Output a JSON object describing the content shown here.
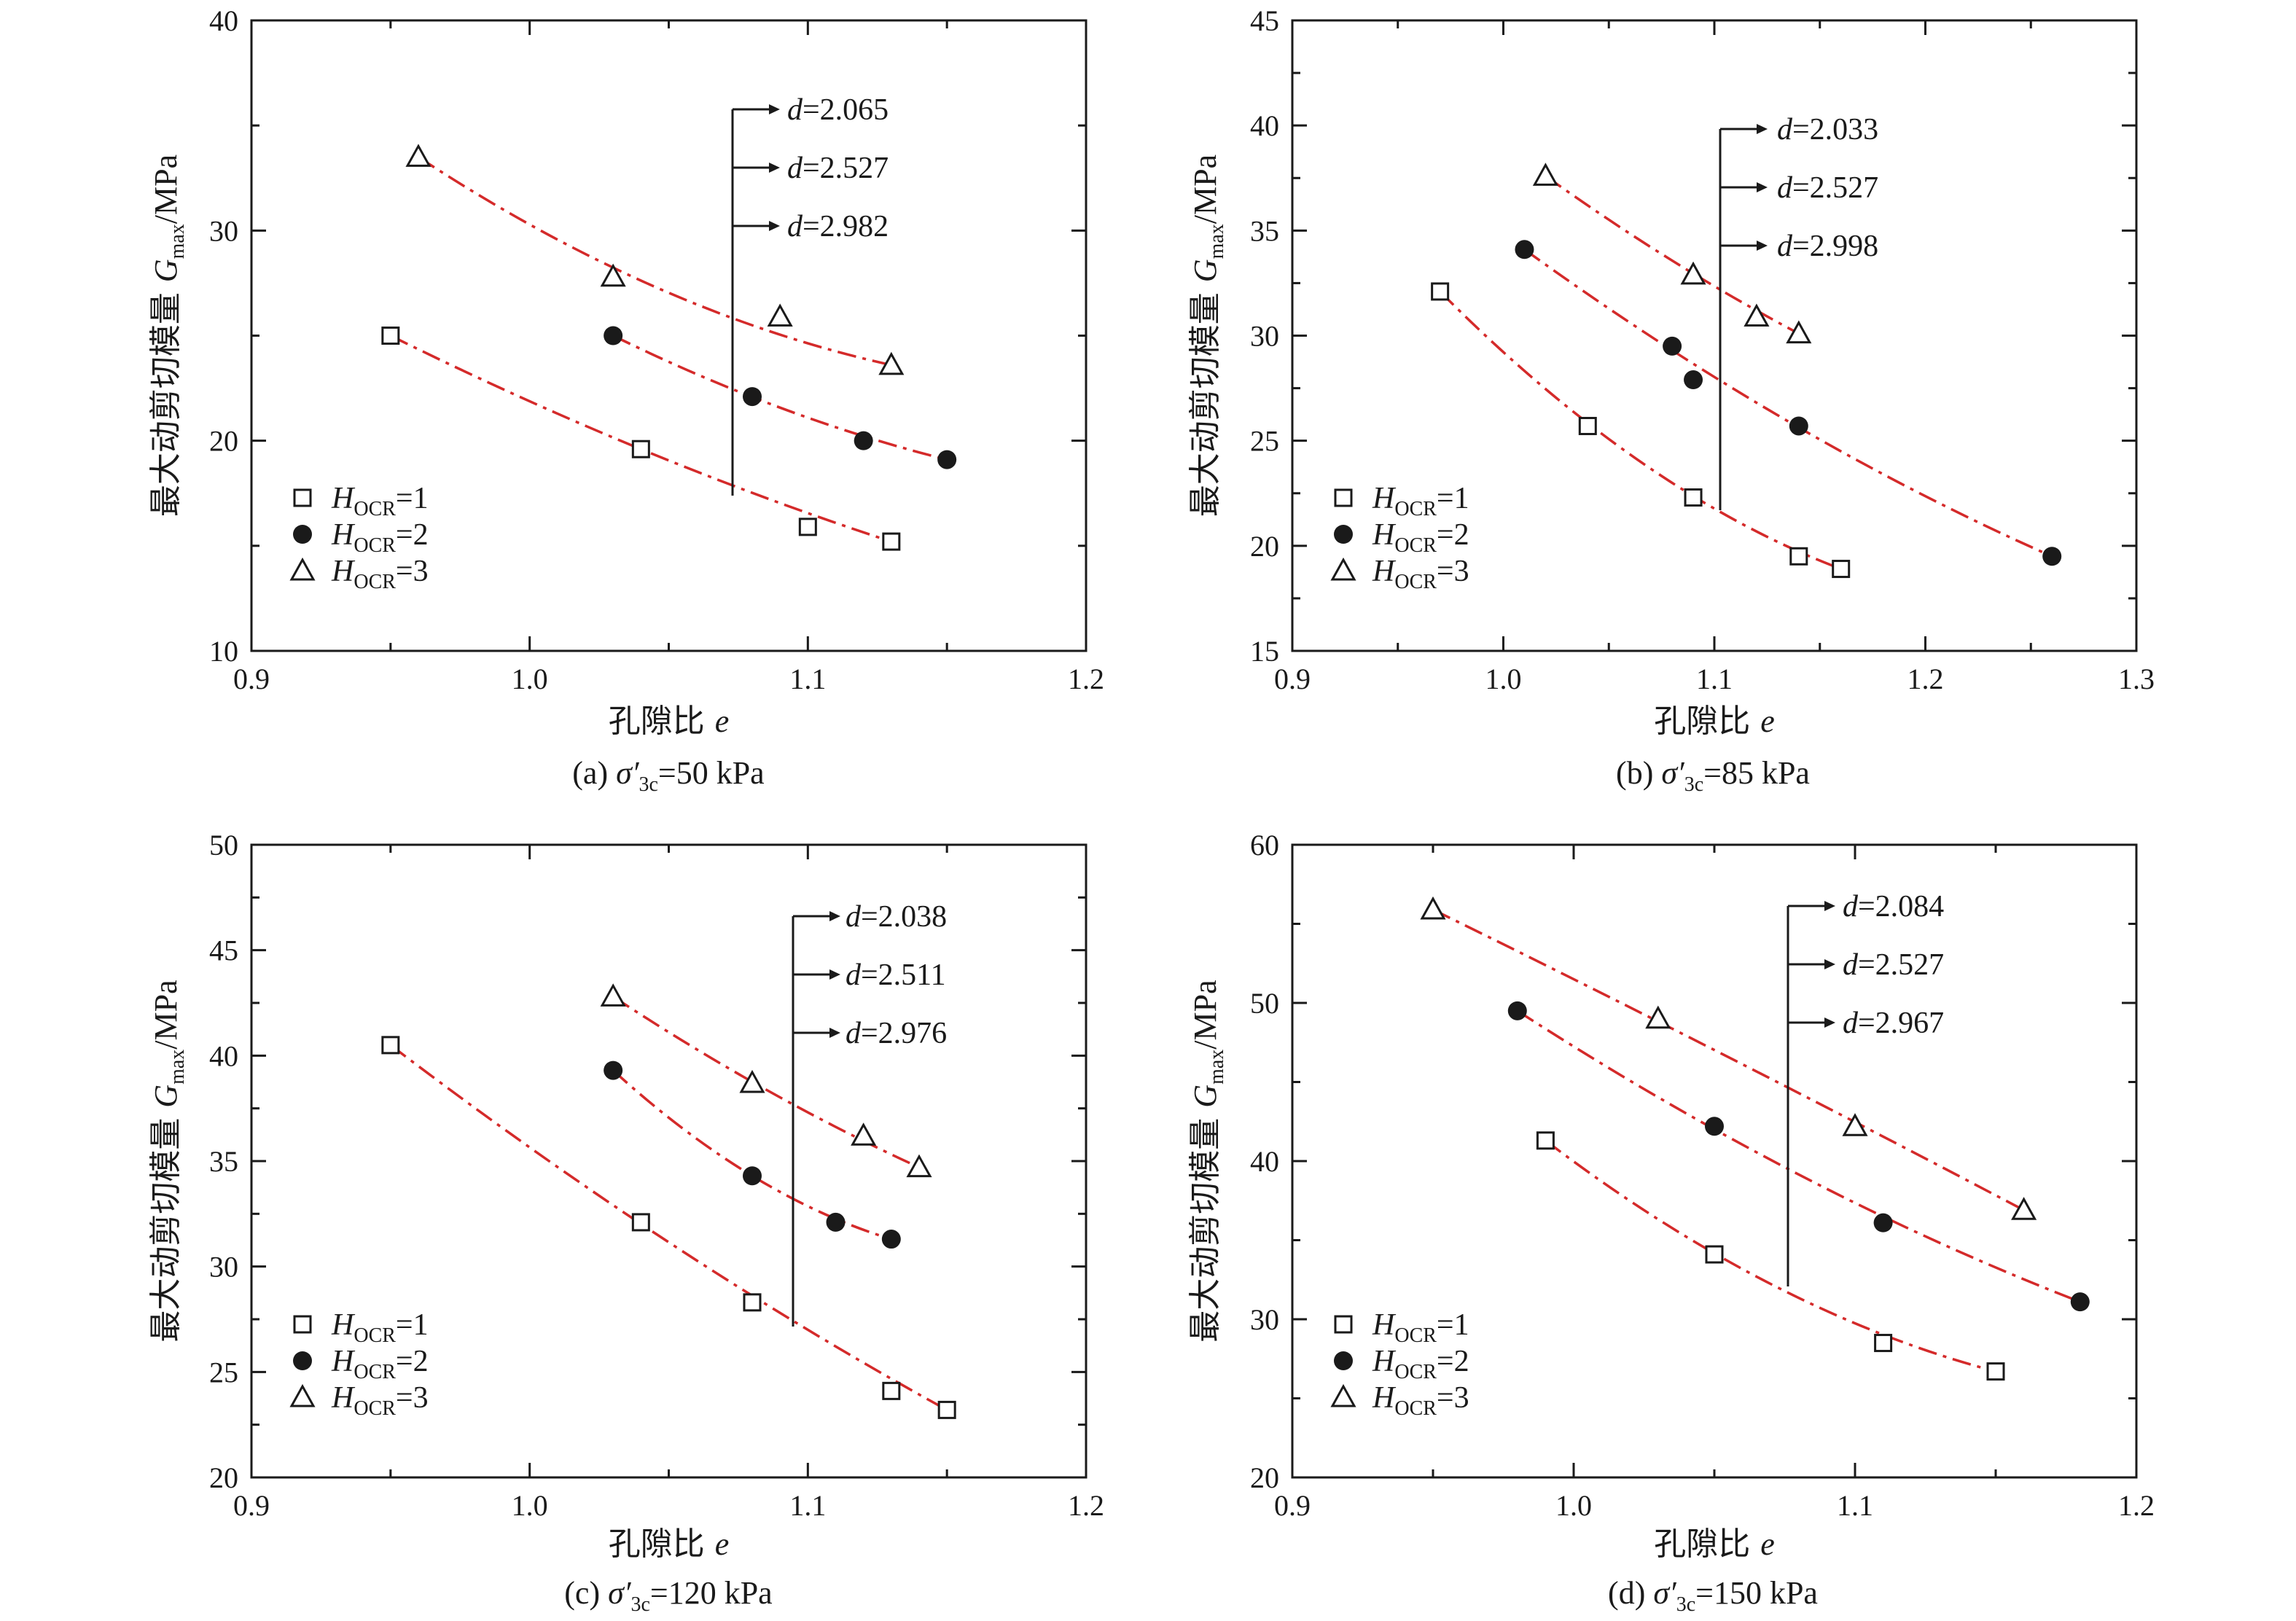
{
  "chart_data": [
    {
      "type": "scatter",
      "caption": {
        "prefix": "(a) ",
        "symbol": "σ′",
        "sub": "3c",
        "rest": "=50 kPa"
      },
      "xlabel": {
        "cn": "孔隙比",
        "var": "e"
      },
      "ylabel": {
        "cn": "最大动剪切模量",
        "var": "G",
        "sub": "max",
        "unit": "/MPa"
      },
      "xlim": [
        0.9,
        1.2
      ],
      "ylim": [
        10,
        40
      ],
      "xticks": [
        "0.9",
        "1.0",
        "1.1",
        "1.2"
      ],
      "yticks": [
        "10",
        "20",
        "30",
        "40"
      ],
      "d_values": [
        "d=2.065",
        "d=2.527",
        "d=2.982"
      ],
      "series": [
        {
          "name": "HOCR=1",
          "label": {
            "var": "H",
            "sub": "OCR",
            "val": "=1"
          },
          "marker": "square",
          "x": [
            0.95,
            1.04,
            1.1,
            1.13
          ],
          "y": [
            25.0,
            19.6,
            15.9,
            15.2
          ]
        },
        {
          "name": "HOCR=2",
          "label": {
            "var": "H",
            "sub": "OCR",
            "val": "=2"
          },
          "marker": "circle",
          "x": [
            1.03,
            1.08,
            1.12,
            1.15
          ],
          "y": [
            25.0,
            22.1,
            20.0,
            19.1
          ]
        },
        {
          "name": "HOCR=3",
          "label": {
            "var": "H",
            "sub": "OCR",
            "val": "=3"
          },
          "marker": "triangle",
          "x": [
            0.96,
            1.03,
            1.09,
            1.13
          ],
          "y": [
            33.5,
            27.8,
            25.9,
            23.6
          ]
        }
      ]
    },
    {
      "type": "scatter",
      "caption": {
        "prefix": "(b) ",
        "symbol": "σ′",
        "sub": "3c",
        "rest": "=85 kPa"
      },
      "xlabel": {
        "cn": "孔隙比",
        "var": "e"
      },
      "ylabel": {
        "cn": "最大动剪切模量",
        "var": "G",
        "sub": "max",
        "unit": "/MPa"
      },
      "xlim": [
        0.9,
        1.3
      ],
      "ylim": [
        15,
        45
      ],
      "xticks": [
        "0.9",
        "1.0",
        "1.1",
        "1.2",
        "1.3"
      ],
      "yticks": [
        "15",
        "20",
        "25",
        "30",
        "35",
        "40",
        "45"
      ],
      "d_values": [
        "d=2.033",
        "d=2.527",
        "d=2.998"
      ],
      "series": [
        {
          "name": "HOCR=1",
          "label": {
            "var": "H",
            "sub": "OCR",
            "val": "=1"
          },
          "marker": "square",
          "x": [
            0.97,
            1.04,
            1.09,
            1.14,
            1.16
          ],
          "y": [
            32.1,
            25.7,
            22.3,
            19.5,
            18.9
          ]
        },
        {
          "name": "HOCR=2",
          "label": {
            "var": "H",
            "sub": "OCR",
            "val": "=2"
          },
          "marker": "circle",
          "x": [
            1.01,
            1.08,
            1.09,
            1.14,
            1.26
          ],
          "y": [
            34.1,
            29.5,
            27.9,
            25.7,
            19.5
          ]
        },
        {
          "name": "HOCR=3",
          "label": {
            "var": "H",
            "sub": "OCR",
            "val": "=3"
          },
          "marker": "triangle",
          "x": [
            1.02,
            1.09,
            1.12,
            1.14
          ],
          "y": [
            37.6,
            32.9,
            30.9,
            30.1
          ]
        }
      ]
    },
    {
      "type": "scatter",
      "caption": {
        "prefix": "(c) ",
        "symbol": "σ′",
        "sub": "3c",
        "rest": "=120 kPa"
      },
      "xlabel": {
        "cn": "孔隙比",
        "var": "e"
      },
      "ylabel": {
        "cn": "最大动剪切模量",
        "var": "G",
        "sub": "max",
        "unit": "/MPa"
      },
      "xlim": [
        0.9,
        1.2
      ],
      "ylim": [
        20,
        50
      ],
      "xticks": [
        "0.9",
        "1.0",
        "1.1",
        "1.2"
      ],
      "yticks": [
        "20",
        "25",
        "30",
        "35",
        "40",
        "45",
        "50"
      ],
      "d_values": [
        "d=2.038",
        "d=2.511",
        "d=2.976"
      ],
      "series": [
        {
          "name": "HOCR=1",
          "label": {
            "var": "H",
            "sub": "OCR",
            "val": "=1"
          },
          "marker": "square",
          "x": [
            0.95,
            1.04,
            1.08,
            1.13,
            1.15
          ],
          "y": [
            40.5,
            32.1,
            28.3,
            24.1,
            23.2
          ]
        },
        {
          "name": "HOCR=2",
          "label": {
            "var": "H",
            "sub": "OCR",
            "val": "=2"
          },
          "marker": "circle",
          "x": [
            1.03,
            1.08,
            1.11,
            1.13
          ],
          "y": [
            39.3,
            34.3,
            32.1,
            31.3
          ]
        },
        {
          "name": "HOCR=3",
          "label": {
            "var": "H",
            "sub": "OCR",
            "val": "=3"
          },
          "marker": "triangle",
          "x": [
            1.03,
            1.08,
            1.12,
            1.14
          ],
          "y": [
            42.8,
            38.7,
            36.2,
            34.7
          ]
        }
      ]
    },
    {
      "type": "scatter",
      "caption": {
        "prefix": "(d) ",
        "symbol": "σ′",
        "sub": "3c",
        "rest": "=150 kPa"
      },
      "xlabel": {
        "cn": "孔隙比",
        "var": "e"
      },
      "ylabel": {
        "cn": "最大动剪切模量",
        "var": "G",
        "sub": "max",
        "unit": "/MPa"
      },
      "xlim": [
        0.9,
        1.2
      ],
      "ylim": [
        20,
        60
      ],
      "xticks": [
        "0.9",
        "1.0",
        "1.1",
        "1.2"
      ],
      "yticks": [
        "20",
        "30",
        "40",
        "50",
        "60"
      ],
      "d_values": [
        "d=2.084",
        "d=2.527",
        "d=2.967"
      ],
      "series": [
        {
          "name": "HOCR=1",
          "label": {
            "var": "H",
            "sub": "OCR",
            "val": "=1"
          },
          "marker": "square",
          "x": [
            0.99,
            1.05,
            1.11,
            1.15
          ],
          "y": [
            41.3,
            34.1,
            28.5,
            26.7
          ]
        },
        {
          "name": "HOCR=2",
          "label": {
            "var": "H",
            "sub": "OCR",
            "val": "=2"
          },
          "marker": "circle",
          "x": [
            0.98,
            1.05,
            1.11,
            1.18
          ],
          "y": [
            49.5,
            42.2,
            36.1,
            31.1
          ]
        },
        {
          "name": "HOCR=3",
          "label": {
            "var": "H",
            "sub": "OCR",
            "val": "=3"
          },
          "marker": "triangle",
          "x": [
            0.95,
            1.03,
            1.1,
            1.16
          ],
          "y": [
            55.9,
            49.0,
            42.2,
            36.9
          ]
        }
      ]
    }
  ]
}
